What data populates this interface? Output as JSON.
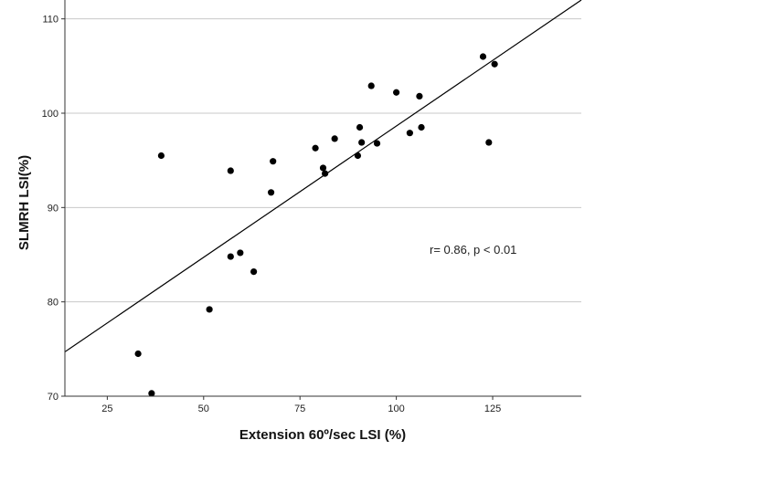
{
  "chart_data": {
    "type": "scatter",
    "xlabel": "Extension 60º/sec LSI (%)",
    "ylabel": "SLMRH LSI(%)",
    "xlim": [
      14,
      148
    ],
    "ylim": [
      70,
      112
    ],
    "x_ticks": [
      25,
      50,
      75,
      100,
      125
    ],
    "y_ticks": [
      70,
      80,
      90,
      100,
      110
    ],
    "grid": "horizontal",
    "annotation": "r= 0.86, p < 0.01",
    "points": [
      {
        "x": 33,
        "y": 74.5
      },
      {
        "x": 36.5,
        "y": 70.3
      },
      {
        "x": 39,
        "y": 95.5
      },
      {
        "x": 51.5,
        "y": 79.2
      },
      {
        "x": 57,
        "y": 93.9
      },
      {
        "x": 57,
        "y": 84.8
      },
      {
        "x": 59.5,
        "y": 85.2
      },
      {
        "x": 63,
        "y": 83.2
      },
      {
        "x": 67.5,
        "y": 91.6
      },
      {
        "x": 68,
        "y": 94.9
      },
      {
        "x": 79,
        "y": 96.3
      },
      {
        "x": 81,
        "y": 94.2
      },
      {
        "x": 81.5,
        "y": 93.6
      },
      {
        "x": 84,
        "y": 97.3
      },
      {
        "x": 90,
        "y": 95.5
      },
      {
        "x": 90.5,
        "y": 98.5
      },
      {
        "x": 91,
        "y": 96.9
      },
      {
        "x": 93.5,
        "y": 102.9
      },
      {
        "x": 95,
        "y": 96.8
      },
      {
        "x": 100,
        "y": 102.2
      },
      {
        "x": 103.5,
        "y": 97.9
      },
      {
        "x": 106,
        "y": 101.8
      },
      {
        "x": 106.5,
        "y": 98.5
      },
      {
        "x": 122.5,
        "y": 106
      },
      {
        "x": 124,
        "y": 96.9
      },
      {
        "x": 125.5,
        "y": 105.2
      }
    ],
    "fit_line": {
      "x": [
        14,
        148
      ],
      "y": [
        74.7,
        112
      ]
    }
  }
}
